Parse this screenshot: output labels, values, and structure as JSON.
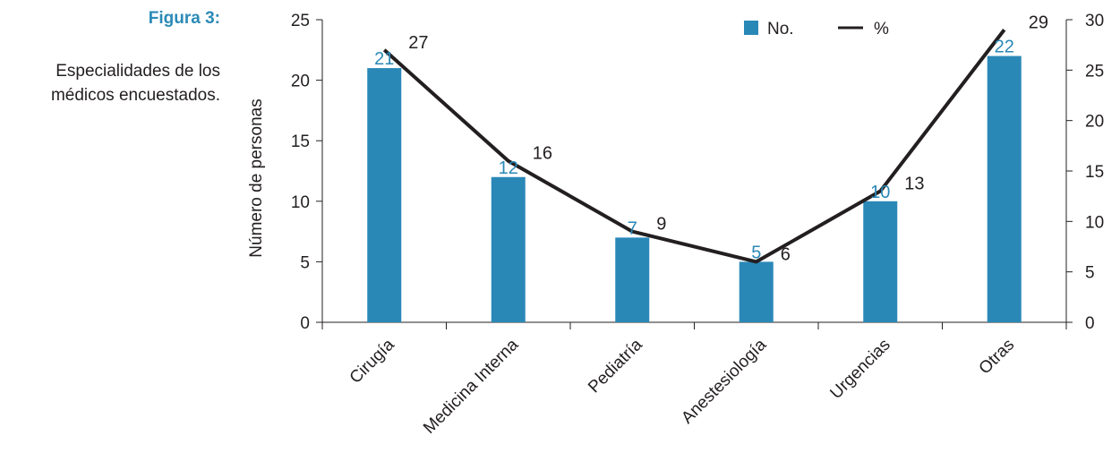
{
  "caption": {
    "label": "Figura 3:",
    "description": "Especialidades de los médicos encuestados."
  },
  "colors": {
    "bar": "#2a88b7",
    "line": "#231f20",
    "bar_label": "#2a88b7",
    "text": "#231f20"
  },
  "chart_data": {
    "type": "bar",
    "categories": [
      "Cirugía",
      "Medicina Interna",
      "Pediatría",
      "Anestesiología",
      "Urgencias",
      "Otras"
    ],
    "series": [
      {
        "name": "No.",
        "type": "bar",
        "axis": "left",
        "values": [
          21,
          12,
          7,
          5,
          10,
          22
        ]
      },
      {
        "name": "%",
        "type": "line",
        "axis": "right",
        "values": [
          27,
          16,
          9,
          6,
          13,
          29
        ]
      }
    ],
    "ylabel": "Número de personas",
    "ylim": [
      0,
      25
    ],
    "yticks": [
      0,
      5,
      10,
      15,
      20,
      25
    ],
    "y2lim": [
      0,
      30
    ],
    "y2ticks": [
      0,
      5,
      10,
      15,
      20,
      25,
      30
    ],
    "legend": "top-right",
    "grid": false
  }
}
